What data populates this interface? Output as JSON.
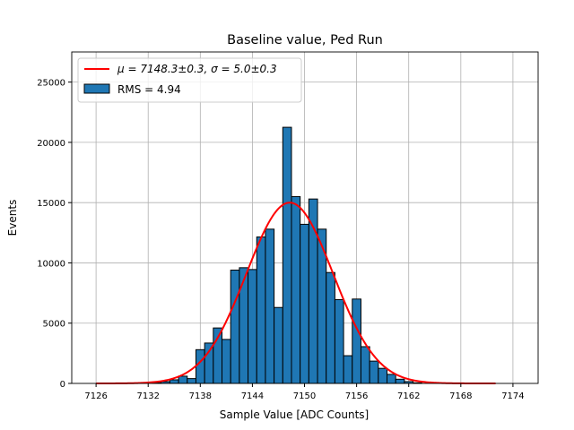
{
  "chart_data": {
    "type": "bar",
    "title": "Baseline value, Ped Run",
    "xlabel": "Sample Value [ADC Counts]",
    "ylabel": "Events",
    "xlim": [
      7123.2,
      7176.9
    ],
    "ylim": [
      0,
      27500
    ],
    "xticks": [
      7126,
      7132,
      7138,
      7144,
      7150,
      7156,
      7162,
      7168,
      7174
    ],
    "yticks": [
      0,
      5000,
      10000,
      15000,
      20000,
      25000
    ],
    "grid": true,
    "legend_placement": "top-left",
    "bin_width": 1,
    "bins": [
      7133,
      7134,
      7135,
      7136,
      7137,
      7138,
      7139,
      7140,
      7141,
      7142,
      7143,
      7144,
      7145,
      7146,
      7147,
      7148,
      7149,
      7150,
      7151,
      7152,
      7153,
      7154,
      7155,
      7156,
      7157,
      7158,
      7159,
      7160,
      7161,
      7162,
      7163
    ],
    "values": [
      60,
      150,
      300,
      600,
      400,
      2800,
      3350,
      4600,
      3650,
      9400,
      9600,
      9450,
      12150,
      12800,
      6300,
      21250,
      15500,
      13200,
      15300,
      12800,
      9200,
      6950,
      2300,
      7000,
      3050,
      1850,
      1250,
      750,
      350,
      150,
      50
    ],
    "histogram_label": "RMS = 4.94",
    "fit": {
      "mu": 7148.3,
      "sigma": 5.0,
      "amplitude": 15000,
      "x_range": [
        7126,
        7172
      ],
      "label_mu": "μ = 7148.3±0.3, ",
      "label_sigma": "σ = 5.0±0.3"
    },
    "colors": {
      "bar": "#1f77b4",
      "bar_edge": "#000000",
      "fit": "#ff0000",
      "grid": "#b0b0b0"
    }
  }
}
